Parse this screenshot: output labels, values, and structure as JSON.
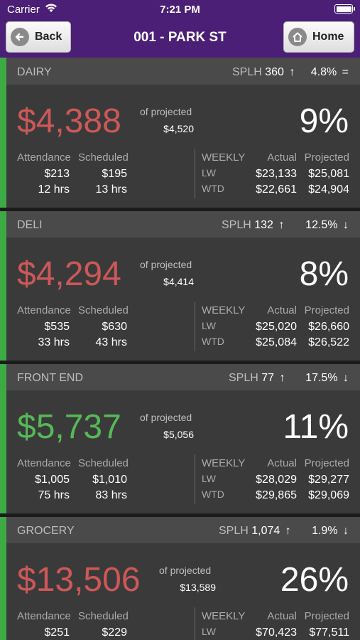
{
  "status": {
    "carrier": "Carrier",
    "time": "7:21 PM"
  },
  "nav": {
    "back_label": "Back",
    "home_label": "Home",
    "title": "001 - PARK ST"
  },
  "labels": {
    "of_projected": "of projected",
    "attendance": "Attendance",
    "scheduled": "Scheduled",
    "weekly": "WEEKLY",
    "actual": "Actual",
    "projected": "Projected",
    "lw": "LW",
    "wtd": "WTD",
    "splh": "SPLH"
  },
  "colors": {
    "accent_green": "#3daa46",
    "below_red": "#cc5858",
    "above_green": "#56b857",
    "nav_purple": "#4b1f75"
  },
  "departments": [
    {
      "name": "DAIRY",
      "splh": "360",
      "splh_trend": "↑",
      "pct": "4.8%",
      "pct_trend": "=",
      "amount": "$4,388",
      "amount_status": "red",
      "projected": "$4,520",
      "percent": "9%",
      "attendance": "$213",
      "attendance_hrs": "12 hrs",
      "scheduled": "$195",
      "scheduled_hrs": "13 hrs",
      "lw_actual": "$23,133",
      "lw_projected": "$25,081",
      "wtd_actual": "$22,661",
      "wtd_projected": "$24,904"
    },
    {
      "name": "DELI",
      "splh": "132",
      "splh_trend": "↑",
      "pct": "12.5%",
      "pct_trend": "↓",
      "amount": "$4,294",
      "amount_status": "red",
      "projected": "$4,414",
      "percent": "8%",
      "attendance": "$535",
      "attendance_hrs": "33 hrs",
      "scheduled": "$630",
      "scheduled_hrs": "43 hrs",
      "lw_actual": "$25,020",
      "lw_projected": "$26,660",
      "wtd_actual": "$25,084",
      "wtd_projected": "$26,522"
    },
    {
      "name": "FRONT END",
      "splh": "77",
      "splh_trend": "↑",
      "pct": "17.5%",
      "pct_trend": "↓",
      "amount": "$5,737",
      "amount_status": "green",
      "projected": "$5,056",
      "percent": "11%",
      "attendance": "$1,005",
      "attendance_hrs": "75 hrs",
      "scheduled": "$1,010",
      "scheduled_hrs": "83 hrs",
      "lw_actual": "$28,029",
      "lw_projected": "$29,277",
      "wtd_actual": "$29,865",
      "wtd_projected": "$29,069"
    },
    {
      "name": "GROCERY",
      "splh": "1,074",
      "splh_trend": "↑",
      "pct": "1.9%",
      "pct_trend": "↓",
      "amount": "$13,506",
      "amount_status": "red",
      "projected": "$13,589",
      "percent": "26%",
      "attendance": "$251",
      "attendance_hrs": "",
      "scheduled": "$229",
      "scheduled_hrs": "",
      "lw_actual": "$70,423",
      "lw_projected": "$77,511",
      "wtd_actual": "",
      "wtd_projected": ""
    }
  ]
}
